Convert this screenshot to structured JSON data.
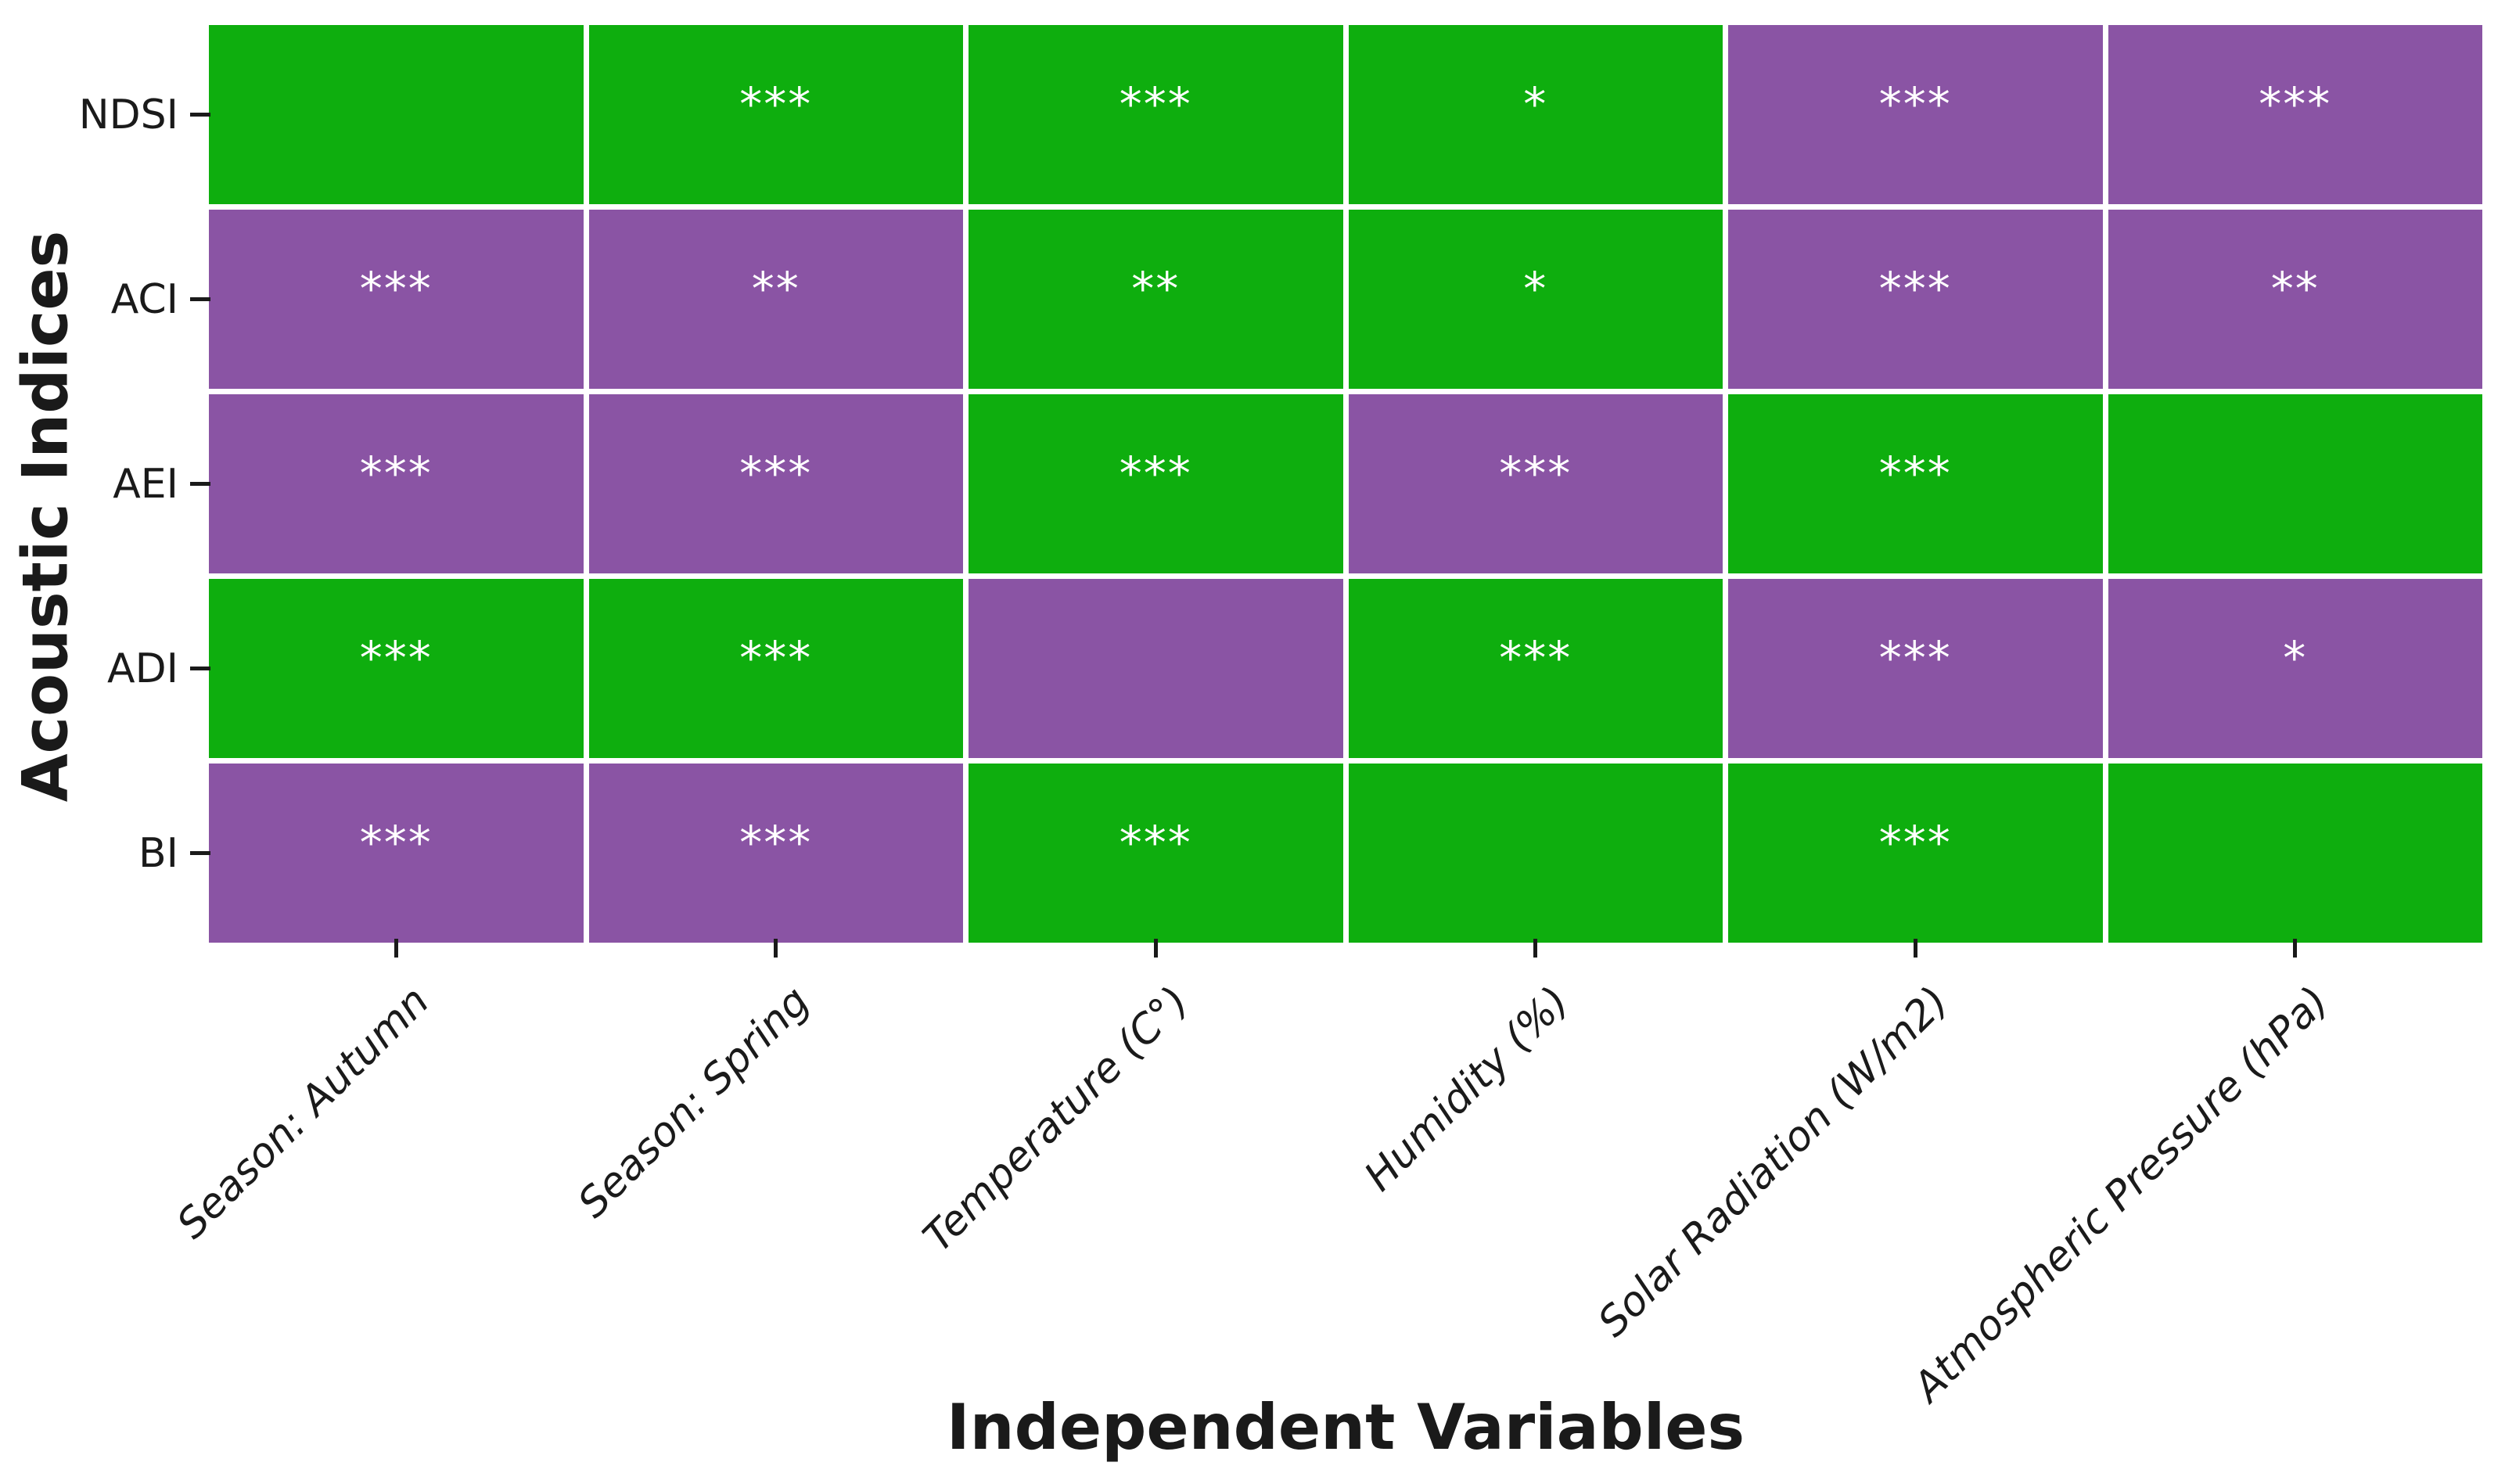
{
  "chart_data": {
    "type": "heatmap",
    "xlabel": "Independent Variables",
    "ylabel": "Acoustic Indices",
    "rows": [
      "NDSI",
      "ACI",
      "AEI",
      "ADI",
      "BI"
    ],
    "columns": [
      "Season: Autumn",
      "Season: Spring",
      "Temperature (C°)",
      "Humidity (%)",
      "Solar Radiation (W/m2)",
      "Atmospheric Pressure (hPa)"
    ],
    "cells": [
      [
        {
          "color": "green",
          "sig": ""
        },
        {
          "color": "green",
          "sig": "***"
        },
        {
          "color": "green",
          "sig": "***"
        },
        {
          "color": "green",
          "sig": "*"
        },
        {
          "color": "purple",
          "sig": "***"
        },
        {
          "color": "purple",
          "sig": "***"
        }
      ],
      [
        {
          "color": "purple",
          "sig": "***"
        },
        {
          "color": "purple",
          "sig": "**"
        },
        {
          "color": "green",
          "sig": "**"
        },
        {
          "color": "green",
          "sig": "*"
        },
        {
          "color": "purple",
          "sig": "***"
        },
        {
          "color": "purple",
          "sig": "**"
        }
      ],
      [
        {
          "color": "purple",
          "sig": "***"
        },
        {
          "color": "purple",
          "sig": "***"
        },
        {
          "color": "green",
          "sig": "***"
        },
        {
          "color": "purple",
          "sig": "***"
        },
        {
          "color": "green",
          "sig": "***"
        },
        {
          "color": "green",
          "sig": ""
        }
      ],
      [
        {
          "color": "green",
          "sig": "***"
        },
        {
          "color": "green",
          "sig": "***"
        },
        {
          "color": "purple",
          "sig": ""
        },
        {
          "color": "green",
          "sig": "***"
        },
        {
          "color": "purple",
          "sig": "***"
        },
        {
          "color": "purple",
          "sig": "*"
        }
      ],
      [
        {
          "color": "purple",
          "sig": "***"
        },
        {
          "color": "purple",
          "sig": "***"
        },
        {
          "color": "green",
          "sig": "***"
        },
        {
          "color": "green",
          "sig": ""
        },
        {
          "color": "green",
          "sig": "***"
        },
        {
          "color": "green",
          "sig": ""
        }
      ]
    ],
    "colors": {
      "green": "#0EAE0E",
      "purple": "#8A54A4",
      "annotation": "#FFFFFF",
      "background": "#FFFFFF",
      "tick": "#1A1A1A"
    },
    "layout": {
      "grid_lines": "white",
      "x_tick_label_rotation_deg": 45,
      "x_tick_label_style": "italic"
    }
  }
}
